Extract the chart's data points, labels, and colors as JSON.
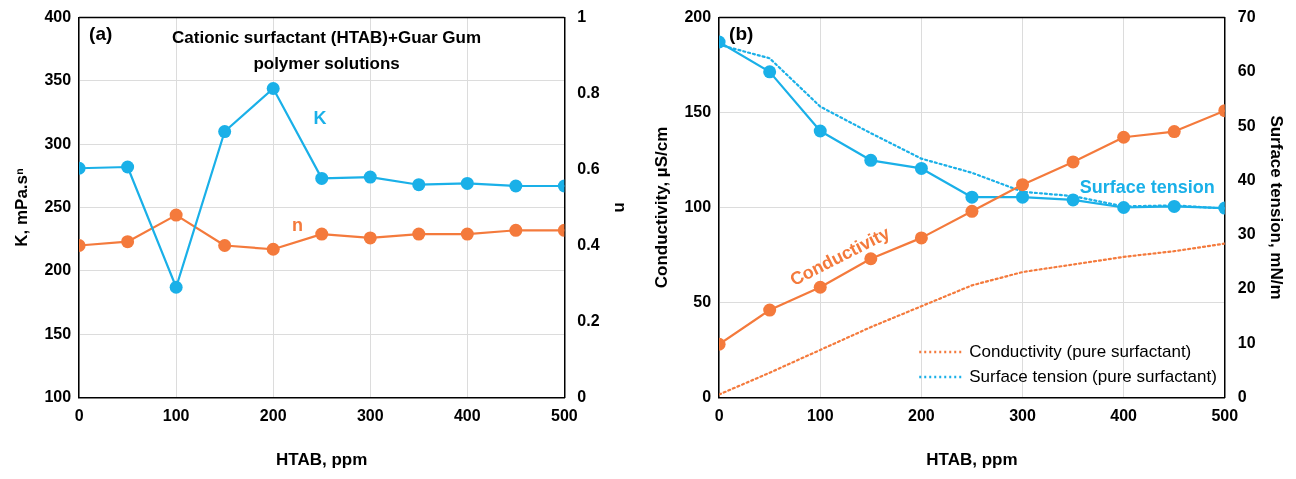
{
  "chart_data": [
    {
      "type": "line",
      "x": [
        0,
        50,
        100,
        150,
        200,
        250,
        300,
        350,
        400,
        450,
        500
      ],
      "xlim": [
        0,
        500
      ],
      "xticks": [
        0,
        100,
        200,
        300,
        400,
        500
      ],
      "ylim": [
        100,
        400
      ],
      "yticks": [
        100,
        150,
        200,
        250,
        300,
        350,
        400
      ],
      "y2lim": [
        0,
        1
      ],
      "y2ticks": [
        0,
        0.2,
        0.4,
        0.6,
        0.8,
        1
      ],
      "xlabel": "HTAB, ppm",
      "ylabel": "K, mPa.sⁿ",
      "y2label": "n",
      "grid": true,
      "marker": "circle",
      "annotations": [
        "(a)",
        "Cationic surfactant (HTAB)+Guar Gum polymer solutions"
      ],
      "series": [
        {
          "name": "K",
          "color": "#1ab0e8",
          "values": [
            281,
            282,
            187,
            310,
            344,
            273,
            274,
            268,
            269,
            267,
            267
          ]
        },
        {
          "name": "n",
          "color": "#f47a3c",
          "axis": "y2",
          "values": [
            0.4,
            0.41,
            0.48,
            0.4,
            0.39,
            0.43,
            0.42,
            0.43,
            0.43,
            0.44,
            0.44
          ]
        }
      ]
    },
    {
      "type": "line",
      "x": [
        0,
        50,
        100,
        150,
        200,
        250,
        300,
        350,
        400,
        450,
        500
      ],
      "xlim": [
        0,
        500
      ],
      "xticks": [
        0,
        100,
        200,
        300,
        400,
        500
      ],
      "ylim": [
        0,
        200
      ],
      "yticks": [
        0,
        50,
        100,
        150,
        200
      ],
      "y2lim": [
        0,
        70
      ],
      "y2ticks": [
        0,
        10,
        20,
        30,
        40,
        50,
        60,
        70
      ],
      "xlabel": "HTAB, ppm",
      "ylabel": "Conductivity, µS/cm",
      "y2label": "Surface tension, mN/m",
      "grid": true,
      "marker": "circle",
      "legend": "bottom right",
      "annotations": [
        "(b)"
      ],
      "series": [
        {
          "name": "Conductivity",
          "color": "#f47a3c",
          "values": [
            28,
            46,
            58,
            73,
            84,
            98,
            112,
            124,
            137,
            140,
            151
          ]
        },
        {
          "name": "Conductivity (pure surfactant)",
          "color": "#f47a3c",
          "marker": "none",
          "line_style": "dotted",
          "values": [
            1.5,
            13,
            25,
            37,
            48,
            59,
            66,
            70,
            74,
            77,
            81
          ]
        },
        {
          "name": "Surface tension",
          "color": "#1ab0e8",
          "axis": "y2",
          "values": [
            65.5,
            60.0,
            49.1,
            43.7,
            42.2,
            36.9,
            36.9,
            36.4,
            35.0,
            35.2,
            34.9
          ]
        },
        {
          "name": "Surface tension (pure surfactant)",
          "color": "#1ab0e8",
          "axis": "y2",
          "marker": "none",
          "line_style": "dotted",
          "values": [
            65,
            62.5,
            53.6,
            48.7,
            44,
            41.4,
            37.9,
            37.1,
            35.2,
            35.4,
            34.8
          ]
        }
      ]
    }
  ]
}
